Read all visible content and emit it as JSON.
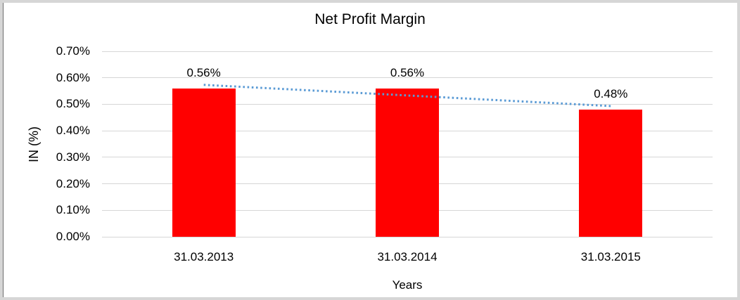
{
  "chart_data": {
    "type": "bar",
    "title": "Net Profit Margin",
    "categories": [
      "31.03.2013",
      "31.03.2014",
      "31.03.2015"
    ],
    "values": [
      0.56,
      0.56,
      0.48
    ],
    "data_labels": [
      "0.56%",
      "0.56%",
      "0.48%"
    ],
    "xlabel": "Years",
    "ylabel": "IN (%)",
    "ylim": [
      0,
      0.7
    ],
    "ytick_step": 0.1,
    "ytick_labels": [
      "0.00%",
      "0.10%",
      "0.20%",
      "0.30%",
      "0.40%",
      "0.50%",
      "0.60%",
      "0.70%"
    ],
    "grid": true,
    "legend": false,
    "bar_color": "#FF0000",
    "gridline_color": "#D6D6D6",
    "trendline": {
      "type": "linear",
      "style": "dotted",
      "color": "#5B9BD5",
      "start_value": 0.5733,
      "end_value": 0.4933
    }
  }
}
